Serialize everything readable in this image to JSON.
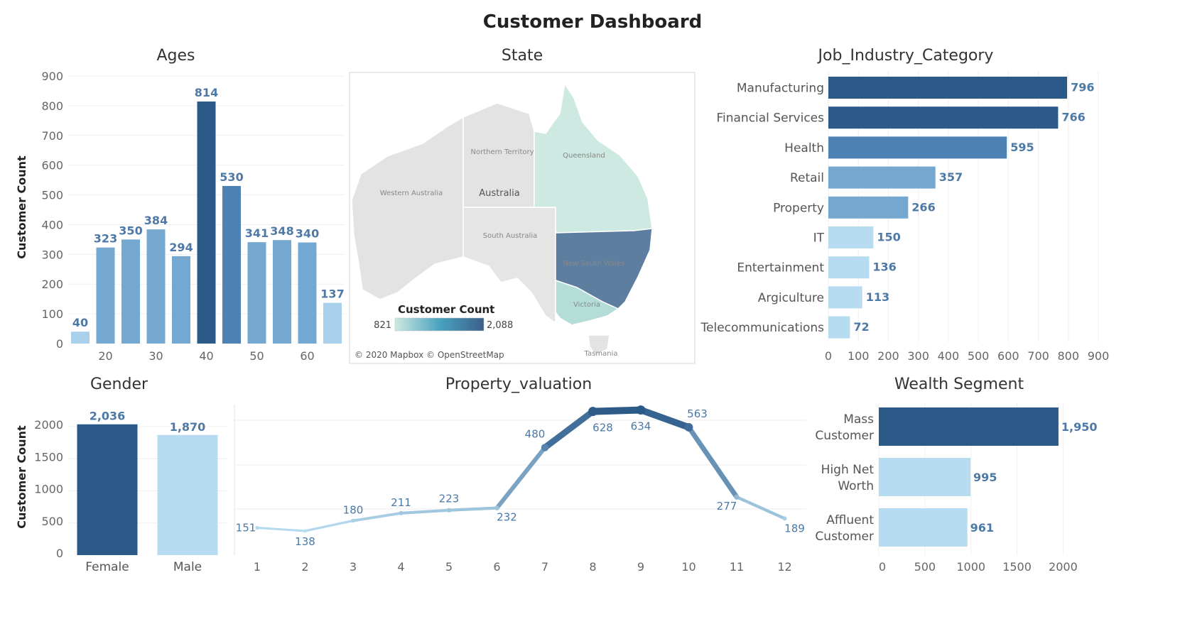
{
  "dashboard": {
    "title": "Customer Dashboard"
  },
  "colors": {
    "dark": "#2c5a88",
    "mid": "#4e82b4",
    "medium": "#74a8d0",
    "light": "#a8d0ea",
    "pale": "#b7dcf1",
    "mapLight": "#cde9e2",
    "mapDark": "#5e7ea0",
    "label": "#4e79a7"
  },
  "chart_data": [
    {
      "id": "ages",
      "type": "bar",
      "title": "Ages",
      "ylabel": "Customer Count",
      "ylim": [
        0,
        900
      ],
      "yticks": [
        0,
        100,
        200,
        300,
        400,
        500,
        600,
        700,
        800,
        900
      ],
      "xticks": [
        "20",
        "30",
        "40",
        "50",
        "60"
      ],
      "values": [
        40,
        323,
        350,
        384,
        294,
        814,
        530,
        341,
        348,
        340,
        137
      ],
      "value_labels": [
        "40",
        "323",
        "350",
        "384",
        "294",
        "814",
        "530",
        "341",
        "348",
        "340",
        "137"
      ]
    },
    {
      "id": "state",
      "type": "map",
      "title": "State",
      "regions": [
        "Northern Territory",
        "Western Australia",
        "Queensland",
        "South Australia",
        "New South Wales",
        "Victoria",
        "Tasmania"
      ],
      "country_label": "Australia",
      "legend": {
        "title": "Customer Count",
        "min": "821",
        "max": "2,088"
      },
      "attribution": "© 2020 Mapbox © OpenStreetMap"
    },
    {
      "id": "job",
      "type": "bar",
      "orientation": "horizontal",
      "title": "Job_Industry_Category",
      "categories": [
        "Manufacturing",
        "Financial Services",
        "Health",
        "Retail",
        "Property",
        "IT",
        "Entertainment",
        "Argiculture",
        "Telecommunications"
      ],
      "values": [
        796,
        766,
        595,
        357,
        266,
        150,
        136,
        113,
        72
      ],
      "xlim": [
        0,
        900
      ],
      "xticks": [
        0,
        100,
        200,
        300,
        400,
        500,
        600,
        700,
        800,
        900
      ]
    },
    {
      "id": "gender",
      "type": "bar",
      "title": "Gender",
      "ylabel": "Customer Count",
      "categories": [
        "Female",
        "Male"
      ],
      "values": [
        2036,
        1870
      ],
      "value_labels": [
        "2,036",
        "1,870"
      ],
      "ylim": [
        0,
        2300
      ],
      "yticks": [
        0,
        500,
        1000,
        1500,
        2000
      ]
    },
    {
      "id": "property",
      "type": "line",
      "title": "Property_valuation",
      "x": [
        1,
        2,
        3,
        4,
        5,
        6,
        7,
        8,
        9,
        10,
        11,
        12
      ],
      "values": [
        151,
        138,
        180,
        211,
        223,
        232,
        480,
        628,
        634,
        563,
        277,
        189
      ],
      "ylim": [
        0,
        680
      ]
    },
    {
      "id": "wealth",
      "type": "bar",
      "orientation": "horizontal",
      "title": "Wealth Segment",
      "categories": [
        [
          "Mass",
          "Customer"
        ],
        [
          "High Net",
          "Worth"
        ],
        [
          "Affluent",
          "Customer"
        ]
      ],
      "values": [
        1950,
        995,
        961
      ],
      "value_labels": [
        "1,950",
        "995",
        "961"
      ],
      "xlim": [
        0,
        2400
      ],
      "xticks": [
        0,
        500,
        1000,
        1500,
        2000
      ]
    }
  ]
}
